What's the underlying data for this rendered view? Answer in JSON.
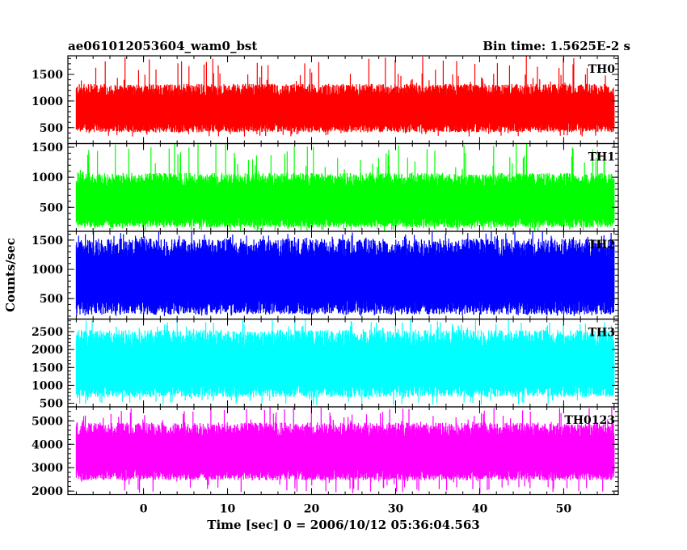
{
  "chart_data": {
    "type": "line",
    "title_left": "ae061012053604_wam0_bst",
    "title_right": "Bin time: 1.5625E-2 s",
    "xlabel": "Time [sec] 0 = 2006/10/12 05:36:04.563",
    "ylabel": "Counts/sec",
    "xlim": [
      -9,
      56.5
    ],
    "data_x_range": [
      -8,
      56
    ],
    "x_ticks": [
      0,
      10,
      20,
      30,
      40,
      50
    ],
    "grid": false,
    "panels": [
      {
        "name": "TH0",
        "color": "#ff0000",
        "ylim": [
          200,
          1850
        ],
        "y_ticks": [
          500,
          1000,
          1500
        ],
        "typical_high": 1200,
        "typical_low": 500,
        "max_peak": 1850,
        "min_trough": 330
      },
      {
        "name": "TH1",
        "color": "#00ff00",
        "ylim": [
          100,
          1560
        ],
        "y_ticks": [
          500,
          1000,
          1500
        ],
        "typical_high": 950,
        "typical_low": 250,
        "max_peak": 1560,
        "min_trough": 100
      },
      {
        "name": "TH2",
        "color": "#0000ff",
        "ylim": [
          150,
          1650
        ],
        "y_ticks": [
          500,
          1000,
          1500
        ],
        "typical_high": 1350,
        "typical_low": 350,
        "max_peak": 1650,
        "min_trough": 200
      },
      {
        "name": "TH3",
        "color": "#00ffff",
        "ylim": [
          400,
          2850
        ],
        "y_ticks": [
          500,
          1000,
          1500,
          2000,
          2500
        ],
        "typical_high": 2300,
        "typical_low": 850,
        "max_peak": 2850,
        "min_trough": 450
      },
      {
        "name": "TH0123",
        "color": "#ff00ff",
        "ylim": [
          1850,
          5600
        ],
        "y_ticks": [
          2000,
          3000,
          4000,
          5000
        ],
        "typical_high": 4600,
        "typical_low": 2700,
        "max_peak": 5600,
        "min_trough": 1900
      }
    ]
  }
}
